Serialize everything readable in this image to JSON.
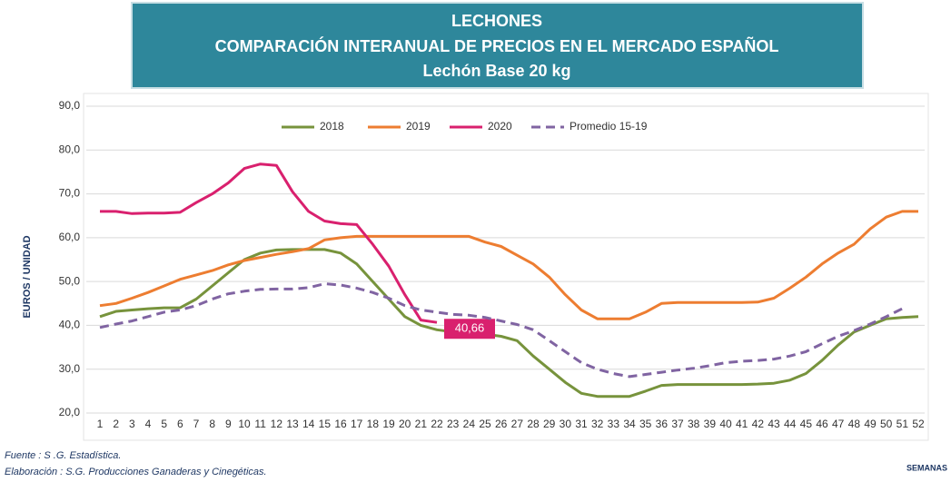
{
  "chart_data": {
    "type": "line",
    "title": [
      "LECHONES",
      "COMPARACIÓN INTERANUAL DE PRECIOS EN EL MERCADO ESPAÑOL",
      "Lechón Base 20 kg"
    ],
    "y_label": "EUROS / UNIDAD",
    "x_label": "SEMANAS",
    "notes": [
      "Fuente :  S .G. Estadística.",
      "Elaboración : S.G. Producciones Ganaderas y Cinegéticas."
    ],
    "categories": [
      "1",
      "2",
      "3",
      "4",
      "5",
      "6",
      "7",
      "8",
      "9",
      "10",
      "11",
      "12",
      "13",
      "14",
      "15",
      "16",
      "17",
      "18",
      "19",
      "20",
      "21",
      "22",
      "23",
      "24",
      "25",
      "26",
      "27",
      "28",
      "29",
      "30",
      "31",
      "32",
      "33",
      "34",
      "35",
      "36",
      "37",
      "38",
      "39",
      "40",
      "41",
      "42",
      "43",
      "44",
      "45",
      "46",
      "47",
      "48",
      "49",
      "50",
      "51",
      "52"
    ],
    "ylim": [
      20,
      90
    ],
    "yticks": [
      {
        "value": 20,
        "label": "20,0"
      },
      {
        "value": 30,
        "label": "30,0"
      },
      {
        "value": 40,
        "label": "40,0"
      },
      {
        "value": 50,
        "label": "50,0"
      },
      {
        "value": 60,
        "label": "60,0"
      },
      {
        "value": 70,
        "label": "70,0"
      },
      {
        "value": 80,
        "label": "80,0"
      },
      {
        "value": 90,
        "label": "90,0"
      }
    ],
    "grid": true,
    "legend": "top",
    "series": [
      {
        "name": "2018",
        "color": "#77933c",
        "values": [
          42,
          43.2,
          43.5,
          43.8,
          44,
          44,
          46,
          49,
          52,
          55,
          56.5,
          57.2,
          57.3,
          57.3,
          57.3,
          56.5,
          54,
          50,
          46,
          42,
          40,
          39,
          38.5,
          38.5,
          38,
          37.5,
          36.5,
          33,
          30,
          27,
          24.5,
          23.8,
          23.8,
          23.8,
          25,
          26.3,
          26.5,
          26.5,
          26.5,
          26.5,
          26.5,
          26.6,
          26.8,
          27.5,
          29,
          32,
          35.5,
          38.5,
          40,
          41.5,
          41.8,
          42
        ]
      },
      {
        "name": "2019",
        "color": "#ed7d31",
        "values": [
          44.5,
          45,
          46.2,
          47.5,
          49,
          50.5,
          51.5,
          52.5,
          53.8,
          54.8,
          55.5,
          56.2,
          56.8,
          57.5,
          59.5,
          60,
          60.3,
          60.3,
          60.3,
          60.3,
          60.3,
          60.3,
          60.3,
          60.3,
          59,
          58,
          56,
          54,
          51,
          47,
          43.5,
          41.5,
          41.5,
          41.5,
          43,
          45,
          45.2,
          45.2,
          45.2,
          45.2,
          45.2,
          45.3,
          46.2,
          48.5,
          51,
          54,
          56.5,
          58.5,
          62,
          64.7,
          66,
          66
        ]
      },
      {
        "name": "2020",
        "color": "#d9206e",
        "values": [
          66,
          66,
          65.5,
          65.6,
          65.6,
          65.8,
          68,
          70,
          72.5,
          75.8,
          76.8,
          76.5,
          70.5,
          66,
          63.8,
          63.2,
          63,
          58.5,
          53.5,
          47,
          41.2,
          40.66,
          null,
          null,
          null,
          null,
          null,
          null,
          null,
          null,
          null,
          null,
          null,
          null,
          null,
          null,
          null,
          null,
          null,
          null,
          null,
          null,
          null,
          null,
          null,
          null,
          null,
          null,
          null,
          null,
          null,
          null
        ],
        "value_labels": [
          null,
          null,
          null,
          null,
          null,
          null,
          null,
          null,
          null,
          null,
          null,
          null,
          null,
          null,
          null,
          null,
          null,
          null,
          null,
          null,
          null,
          "40,66",
          null,
          null,
          null,
          null,
          null,
          null,
          null,
          null,
          null,
          null,
          null,
          null,
          null,
          null,
          null,
          null,
          null,
          null,
          null,
          null,
          null,
          null,
          null,
          null,
          null,
          null,
          null,
          null,
          null,
          null
        ]
      },
      {
        "name": "Promedio 15-19",
        "color": "#8064a2",
        "dashed": true,
        "values": [
          39.5,
          40.3,
          41,
          42,
          43,
          43.5,
          44.5,
          46,
          47.2,
          47.8,
          48.2,
          48.3,
          48.3,
          48.6,
          49.5,
          49.2,
          48.5,
          47.5,
          46.2,
          44.5,
          43.5,
          43,
          42.5,
          42.3,
          41.8,
          41,
          40.2,
          39,
          36.5,
          34,
          31.5,
          30,
          29,
          28.3,
          28.8,
          29.3,
          29.8,
          30.2,
          30.8,
          31.5,
          31.8,
          32,
          32.3,
          33,
          34,
          35.8,
          37.5,
          38.8,
          40.3,
          42,
          43.8,
          null
        ]
      }
    ]
  }
}
